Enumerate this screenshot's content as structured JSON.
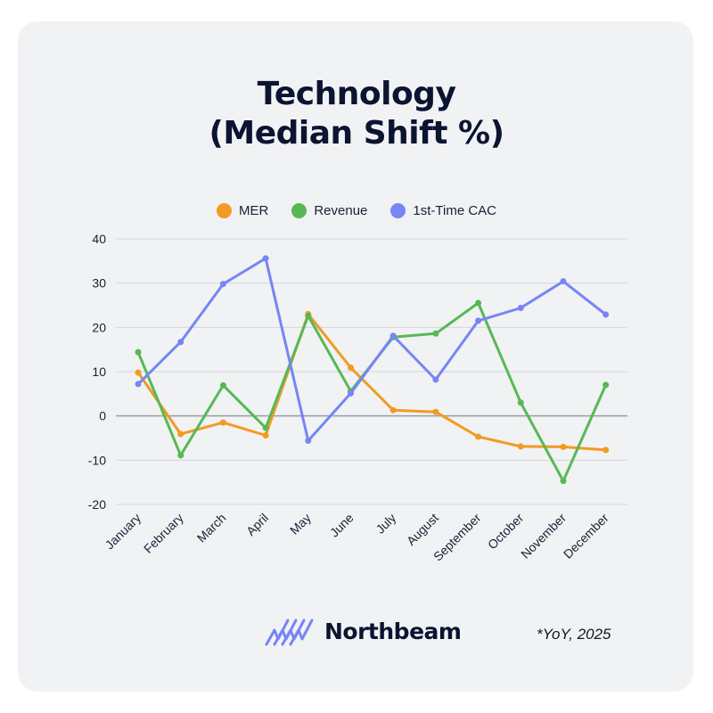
{
  "title_lines": [
    "Technology",
    "(Median Shift %)"
  ],
  "footnote": "*YoY, 2025",
  "brand": "Northbeam",
  "colors": {
    "MER": "#f29a23",
    "Revenue": "#56b954",
    "1st-Time CAC": "#7785f5",
    "grid": "#d4d6db",
    "zero_line": "#9a9ca3"
  },
  "chart_data": {
    "type": "line",
    "title": "Technology (Median Shift %)",
    "xlabel": "",
    "ylabel": "",
    "ylim": [
      -20,
      40
    ],
    "yticks": [
      40,
      30,
      20,
      10,
      0,
      -10,
      -20
    ],
    "legend_position": "top",
    "categories": [
      "January",
      "February",
      "March",
      "April",
      "May",
      "June",
      "July",
      "August",
      "September",
      "October",
      "November",
      "December"
    ],
    "series": [
      {
        "name": "MER",
        "values": [
          9.8,
          -4.1,
          -1.5,
          -4.4,
          23.0,
          10.9,
          1.3,
          0.9,
          -4.7,
          -6.9,
          -7.0,
          -7.7
        ]
      },
      {
        "name": "Revenue",
        "values": [
          14.4,
          -8.9,
          6.9,
          -2.7,
          22.6,
          5.6,
          17.8,
          18.6,
          25.5,
          3.0,
          -14.7,
          7.0
        ]
      },
      {
        "name": "1st-Time CAC",
        "values": [
          7.2,
          16.7,
          29.8,
          35.6,
          -5.6,
          5.1,
          18.1,
          8.2,
          21.5,
          24.4,
          30.4,
          22.9
        ]
      }
    ]
  }
}
